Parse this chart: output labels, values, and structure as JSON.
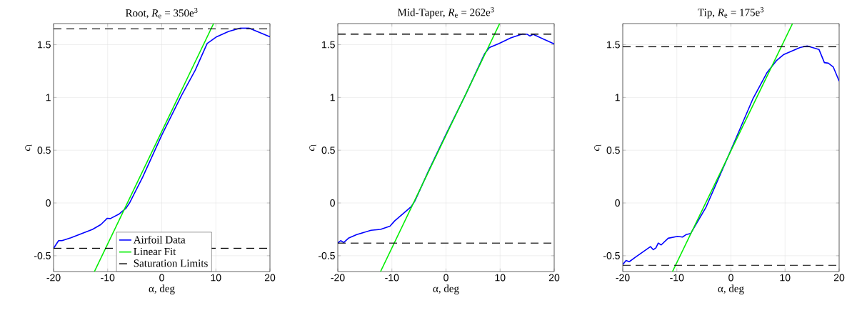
{
  "chart_data": [
    {
      "type": "line",
      "title": "Root, *R*$_{e}$ = 350e$^{3}$",
      "xlabel": "α, deg",
      "ylabel": "*c*$_{l}$",
      "xlim": [
        -20,
        20
      ],
      "ylim": [
        -0.65,
        1.7
      ],
      "xticks": [
        -20,
        -10,
        0,
        10,
        20
      ],
      "yticks": [
        -0.5,
        0,
        0.5,
        1,
        1.5
      ],
      "grid": true,
      "legend": "bottom right",
      "series": [
        {
          "name": "Airfoil Data",
          "color": "#0000ff",
          "x": [
            -20,
            -19.07,
            -18.45,
            -16.8,
            -12.8,
            -11.26,
            -10.07,
            -9.5,
            -7.95,
            -6.6,
            -5.96,
            -3.53,
            0,
            3.53,
            6.18,
            8.39,
            10.15,
            12.36,
            14.57,
            16.1,
            18.1,
            20
          ],
          "values": [
            -0.43,
            -0.357,
            -0.357,
            -0.33,
            -0.25,
            -0.205,
            -0.145,
            -0.148,
            -0.107,
            -0.05,
            0,
            0.245,
            0.643,
            1.007,
            1.257,
            1.511,
            1.575,
            1.625,
            1.657,
            1.657,
            1.616,
            1.575
          ]
        },
        {
          "name": "Linear Fit",
          "color": "#00ee00",
          "x": [
            -12.45,
            9.58
          ],
          "values": [
            -0.65,
            1.7
          ]
        }
      ],
      "ref_lines": [
        {
          "axis": "y",
          "value": 1.65,
          "label": "Saturation Limits",
          "color": "#000000",
          "line_style": "dashed"
        },
        {
          "axis": "y",
          "value": -0.43,
          "color": "#000000",
          "line_style": "dashed"
        }
      ]
    },
    {
      "type": "line",
      "title": "Mid-Taper, *R*$_{e}$ = 262e$^{3}$",
      "xlabel": "α, deg",
      "ylabel": "*c*$_{l}$",
      "xlim": [
        -20,
        20
      ],
      "ylim": [
        -0.65,
        1.7
      ],
      "xticks": [
        -20,
        -10,
        0,
        10,
        20
      ],
      "yticks": [
        -0.5,
        0,
        0.5,
        1,
        1.5
      ],
      "grid": true,
      "series": [
        {
          "color": "#0000ff",
          "x": [
            -20,
            -19.47,
            -18.9,
            -18.03,
            -16.5,
            -13.87,
            -12.1,
            -10.36,
            -9.49,
            -7.3,
            -6.42,
            -5.76,
            -3.35,
            0.15,
            3.66,
            7.16,
            8.03,
            9.78,
            11.97,
            14.16,
            15.04,
            15.5,
            16.1,
            20
          ],
          "values": [
            -0.38,
            -0.357,
            -0.375,
            -0.334,
            -0.3,
            -0.259,
            -0.25,
            -0.22,
            -0.17,
            -0.073,
            -0.034,
            0.018,
            0.29,
            0.666,
            1.03,
            1.416,
            1.473,
            1.511,
            1.564,
            1.602,
            1.598,
            1.582,
            1.598,
            1.507
          ]
        },
        {
          "color": "#00ee00",
          "x": [
            -12.1,
            9.92
          ],
          "values": [
            -0.65,
            1.7
          ]
        }
      ],
      "ref_lines": [
        {
          "axis": "y",
          "value": 1.6,
          "color": "#000000",
          "line_style": "dashed"
        },
        {
          "axis": "y",
          "value": -0.38,
          "color": "#000000",
          "line_style": "dashed"
        }
      ]
    },
    {
      "type": "line",
      "title": "Tip, *R*$_{e}$ = 175e$^{3}$",
      "xlabel": "α, deg",
      "ylabel": "*c*$_{l}$",
      "xlim": [
        -20,
        20
      ],
      "ylim": [
        -0.65,
        1.7
      ],
      "xticks": [
        -20,
        -10,
        0,
        10,
        20
      ],
      "yticks": [
        -0.5,
        0,
        0.5,
        1,
        1.5
      ],
      "grid": true,
      "series": [
        {
          "color": "#0000ff",
          "x": [
            -20,
            -19.39,
            -18.8,
            -17.7,
            -14.88,
            -14.35,
            -13.87,
            -13.44,
            -12.9,
            -11.6,
            -9.85,
            -8.97,
            -8.3,
            -7.44,
            -4.6,
            -0.35,
            4.03,
            6.65,
            8.4,
            9.7,
            12.77,
            14.08,
            16.27,
            17.27,
            18.0,
            18.9,
            20
          ],
          "values": [
            -0.584,
            -0.545,
            -0.557,
            -0.516,
            -0.414,
            -0.443,
            -0.425,
            -0.38,
            -0.398,
            -0.334,
            -0.316,
            -0.323,
            -0.3,
            -0.289,
            -0.039,
            0.461,
            0.984,
            1.234,
            1.348,
            1.405,
            1.473,
            1.489,
            1.455,
            1.33,
            1.325,
            1.29,
            1.155
          ]
        },
        {
          "color": "#00ee00",
          "x": [
            -10.81,
            11.38
          ],
          "values": [
            -0.65,
            1.7
          ]
        }
      ],
      "ref_lines": [
        {
          "axis": "y",
          "value": 1.48,
          "color": "#000000",
          "line_style": "dashed"
        },
        {
          "axis": "y",
          "value": -0.59,
          "color": "#000000",
          "line_style": "dashed"
        }
      ]
    }
  ]
}
